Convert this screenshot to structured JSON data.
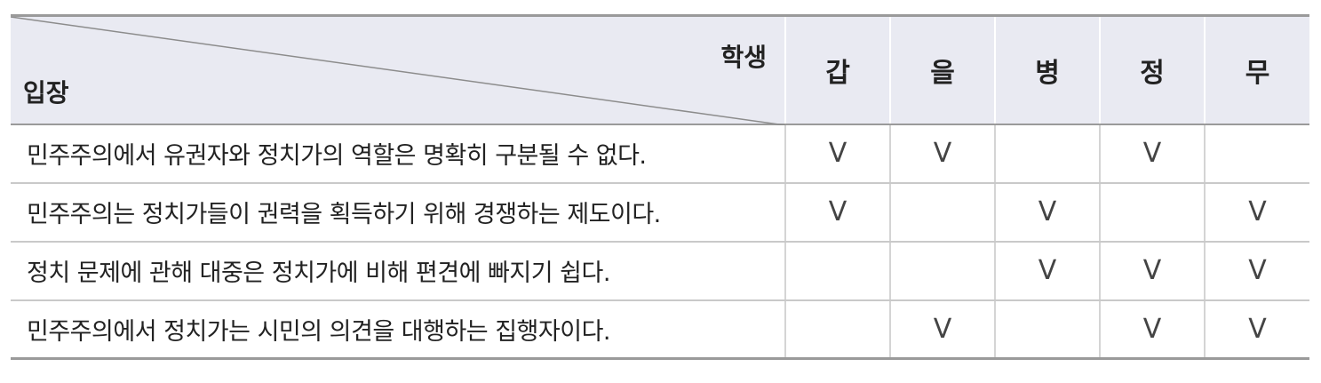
{
  "header": {
    "corner_top": "학생",
    "corner_bottom": "입장",
    "students": [
      "갑",
      "을",
      "병",
      "정",
      "무"
    ]
  },
  "rows": [
    {
      "statement": "민주주의에서 유권자와 정치가의 역할은 명확히 구분될 수 없다.",
      "marks": [
        "V",
        "V",
        "",
        "V",
        ""
      ]
    },
    {
      "statement": "민주주의는 정치가들이 권력을 획득하기 위해 경쟁하는 제도이다.",
      "marks": [
        "V",
        "",
        "V",
        "",
        "V"
      ]
    },
    {
      "statement": "정치 문제에 관해 대중은 정치가에 비해 편견에 빠지기 쉽다.",
      "marks": [
        "",
        "",
        "V",
        "V",
        "V"
      ]
    },
    {
      "statement": "민주주의에서 정치가는 시민의 의견을 대행하는 집행자이다.",
      "marks": [
        "",
        "V",
        "",
        "V",
        "V"
      ]
    }
  ]
}
